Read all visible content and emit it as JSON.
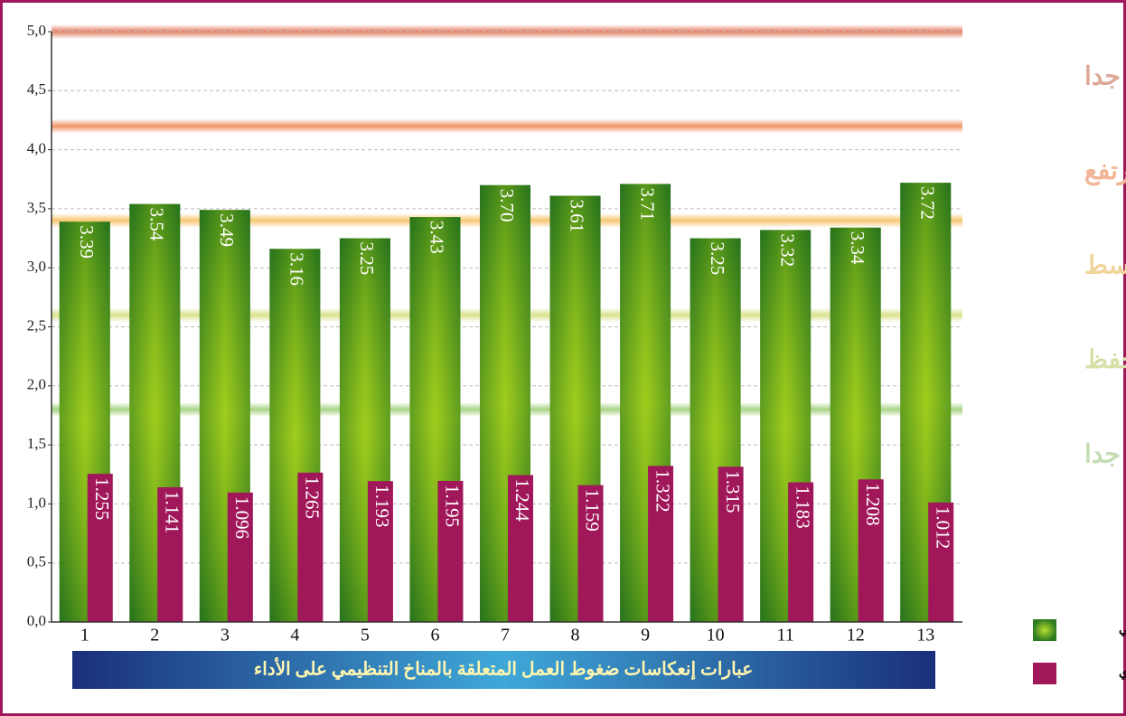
{
  "chart_data": {
    "type": "bar",
    "x_label": "عبارات إنعكاسات ضغوط العمل المتعلقة بالمناخ التنظيمي على الأداء",
    "categories": [
      "1",
      "2",
      "3",
      "4",
      "5",
      "6",
      "7",
      "8",
      "9",
      "10",
      "11",
      "12",
      "13"
    ],
    "series": [
      {
        "name": "المتوسط الحسابي",
        "color": "#3f8f22",
        "values": [
          3.39,
          3.54,
          3.49,
          3.16,
          3.25,
          3.43,
          3.7,
          3.61,
          3.71,
          3.25,
          3.32,
          3.34,
          3.72
        ],
        "value_labels": [
          "3.39",
          "3.54",
          "3.49",
          "3.16",
          "3.25",
          "3.43",
          "3.70",
          "3.61",
          "3.71",
          "3.25",
          "3.32",
          "3.34",
          "3.72"
        ]
      },
      {
        "name": "الإنحراف المعياري",
        "color": "#a0185a",
        "values": [
          1.255,
          1.141,
          1.096,
          1.265,
          1.193,
          1.195,
          1.244,
          1.159,
          1.322,
          1.315,
          1.183,
          1.208,
          1.012
        ]
      }
    ],
    "ylim": [
      0,
      5
    ],
    "yticks": [
      {
        "value": 0,
        "label": "0,0"
      },
      {
        "value": 0.5,
        "label": "0,5"
      },
      {
        "value": 1,
        "label": "1,0"
      },
      {
        "value": 1.5,
        "label": "1,5"
      },
      {
        "value": 2,
        "label": "2,0"
      },
      {
        "value": 2.5,
        "label": "2,5"
      },
      {
        "value": 3,
        "label": "3,0"
      },
      {
        "value": 3.5,
        "label": "3,5"
      },
      {
        "value": 4,
        "label": "4,0"
      },
      {
        "value": 4.5,
        "label": "4,5"
      },
      {
        "value": 5,
        "label": "5,0"
      }
    ],
    "grid": true,
    "bands": [
      {
        "label": "مرتفع جدا",
        "from": 4.2,
        "to": 5.0,
        "color": "#e07050",
        "text_color": "#dca898"
      },
      {
        "label": "مرتفع",
        "from": 3.4,
        "to": 4.2,
        "color": "#f08a55",
        "text_color": "#f2b596"
      },
      {
        "label": "متوسط",
        "from": 2.6,
        "to": 3.4,
        "color": "#f5c060",
        "text_color": "#f0d49a"
      },
      {
        "label": "منخفظ",
        "from": 1.8,
        "to": 2.6,
        "color": "#d5df80",
        "text_color": "#d8e0a8"
      },
      {
        "label": "منخفظ جدا",
        "from": 1.0,
        "to": 1.8,
        "color": "#9fcf78",
        "text_color": "#c5dcb2"
      }
    ]
  }
}
